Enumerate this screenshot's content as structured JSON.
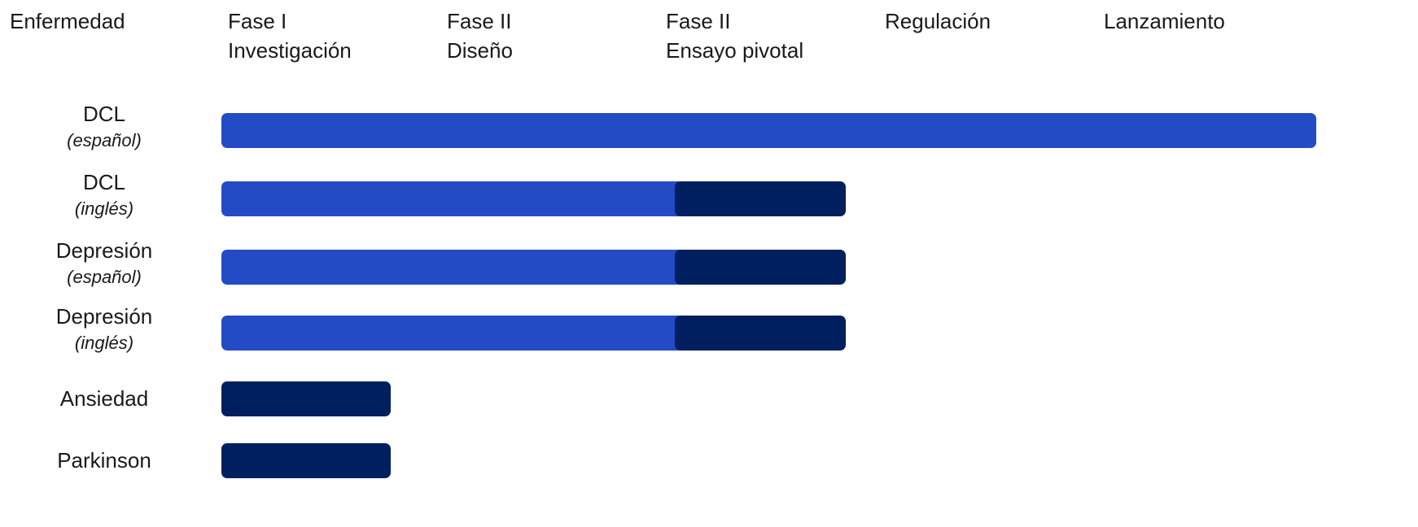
{
  "chart_data": {
    "type": "bar",
    "orientation": "horizontal",
    "stacked": true,
    "x_header": "Enfermedad",
    "x_categories": [
      {
        "line1": "Fase I",
        "line2": "Investigación"
      },
      {
        "line1": "Fase II",
        "line2": "Diseño"
      },
      {
        "line1": "Fase II",
        "line2": "Ensayo pivotal"
      },
      {
        "line1": "Regulación",
        "line2": ""
      },
      {
        "line1": "Lanzamiento",
        "line2": ""
      }
    ],
    "rows": [
      {
        "name": "DCL",
        "lang": "(español)",
        "segments": [
          {
            "start": 0,
            "end": 5.0,
            "color": "#234bc6"
          }
        ]
      },
      {
        "name": "DCL",
        "lang": "(inglés)",
        "segments": [
          {
            "start": 0,
            "end": 2.15,
            "color": "#234bc6"
          },
          {
            "start": 2.07,
            "end": 2.85,
            "color": "#001f5f"
          }
        ]
      },
      {
        "name": "Depresión",
        "lang": "(español)",
        "segments": [
          {
            "start": 0,
            "end": 2.15,
            "color": "#234bc6"
          },
          {
            "start": 2.07,
            "end": 2.85,
            "color": "#001f5f"
          }
        ]
      },
      {
        "name": "Depresión",
        "lang": "(inglés)",
        "segments": [
          {
            "start": 0,
            "end": 2.15,
            "color": "#234bc6"
          },
          {
            "start": 2.07,
            "end": 2.85,
            "color": "#001f5f"
          }
        ]
      },
      {
        "name": "Ansiedad",
        "lang": "",
        "segments": [
          {
            "start": 0,
            "end": 0.775,
            "color": "#001f5f"
          }
        ]
      },
      {
        "name": "Parkinson",
        "lang": "",
        "segments": [
          {
            "start": 0,
            "end": 0.775,
            "color": "#001f5f"
          }
        ]
      }
    ],
    "xlim": [
      0,
      5
    ],
    "grid": false,
    "legend": "none"
  },
  "colors": {
    "light_blue": "#234bc6",
    "dark_navy": "#001f5f"
  }
}
